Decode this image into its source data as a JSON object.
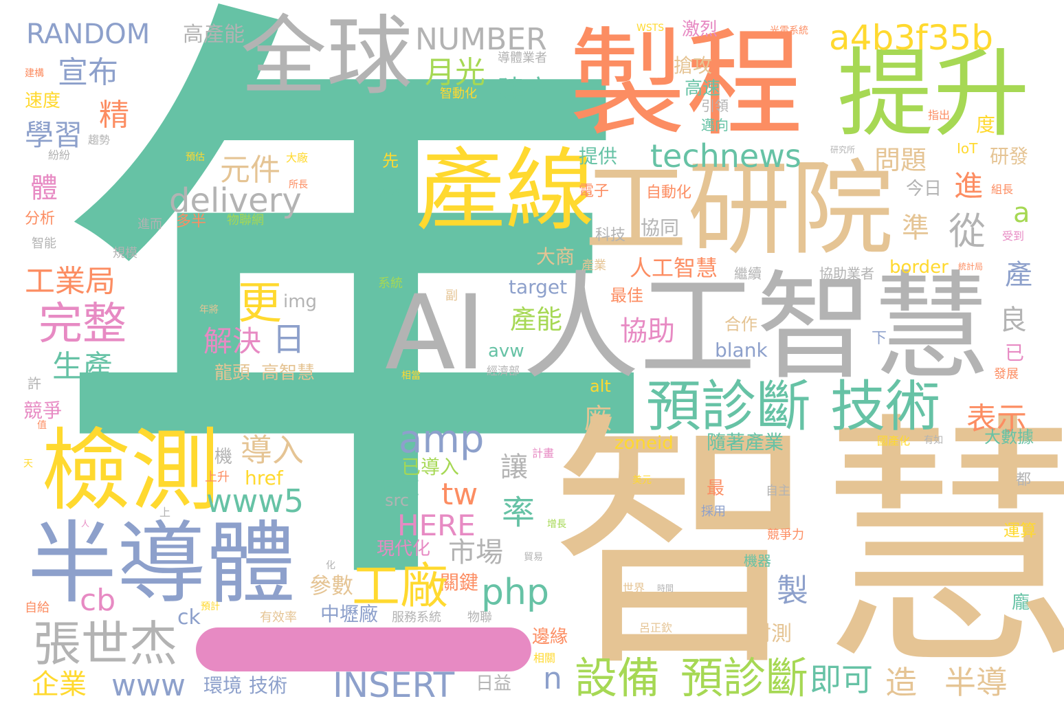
{
  "palette": {
    "teal": "#66c2a5",
    "orange": "#fc8d62",
    "blue": "#8da0cb",
    "pink": "#e78ac3",
    "green": "#a6d854",
    "yellow": "#ffd92f",
    "tan": "#e5c494",
    "gray": "#b3b3b3"
  },
  "words": {
    "nian": "年",
    "zhihui": "智慧",
    "ai": "AI",
    "rengongzhihui": "人工智慧",
    "zhicheng": "製程",
    "tisheng": "提升",
    "quanqiu": "全球",
    "chanxian": "產線",
    "gongyanyuan": "工研院",
    "jiance": "檢測",
    "bandaoti": "半導體",
    "yuzhenduan": "預診斷",
    "jishu": "技術",
    "a4b3f35b": "a4b3f35b",
    "number": "NUMBER",
    "random": "RANDOM",
    "gaochanneng": "高產能",
    "xuanbu": "宣布",
    "jing": "精",
    "xuexi": "學習",
    "yueguang": "月光",
    "jianli": "建立",
    "technews": "technews",
    "delivery": "delivery",
    "yuanjian": "元件",
    "ti": "體",
    "amp": "amp",
    "gongyeju": "工業局",
    "wanzheng": "完整",
    "shengchan": "生產",
    "geng": "更",
    "jiejue": "解決",
    "ri": "日",
    "img": "img",
    "changneng": "產能",
    "xiezhu": "協助",
    "wentiti": "問題",
    "jin": "進",
    "cong": "從",
    "a": "a",
    "zhun": "準",
    "chan": "產",
    "liang": "良",
    "biaoshi": "表示",
    "chang": "廠",
    "dashuju": "大數據",
    "daoru": "導入",
    "rang": "讓",
    "gongchang": "工廠",
    "php": "php",
    "lv": "率",
    "tw": "tw",
    "www5": "www5",
    "cb": "cb",
    "zhangshijie": "張世杰",
    "qiye": "企業",
    "www": "www",
    "insert": "INSERT",
    "n": "n",
    "shebei": "設備",
    "yuzhenduan2": "預診斷",
    "jike": "即可",
    "zao": "造",
    "bandao": "半導",
    "zhi": "製",
    "shichang": "市場",
    "here": "HERE",
    "xiandaihua": "現代化",
    "canshu": "參數",
    "zhongli": "中壢廠",
    "guanjian": "關鍵",
    "fengce": "封測",
    "bianyuan": "邊緣",
    "longtou": "龍頭",
    "gaozhihui": "高智慧",
    "hezuo": "合作",
    "blank": "blank",
    "avw": "avw",
    "alt": "alt",
    "zoneid": "zoneid",
    "suizhe": "隨著產業",
    "zuijia": "最佳",
    "target": "target",
    "border": "border",
    "rengongzhihui_s": "人工智慧",
    "dashang": "大商",
    "kexie": "協同",
    "keji": "科技",
    "zidonghua": "自動化",
    "dianzi": "電子",
    "tigong": "提供",
    "jinri": "今日",
    "yanfa": "研發",
    "iot": "IoT",
    "du": "度",
    "gaosu": "高速",
    "qianggong": "搶攻",
    "jilie": "激烈",
    "wsts": "WSTS",
    "zhihuihua": "智動化",
    "daotiyezhe": "導體業者",
    "guangdian": "光電系統",
    "yindao": "引領",
    "maixiang": "邁向",
    "xian": "先",
    "suduo": "速度",
    "fenxi": "分析",
    "jingzheng": "競爭",
    "xu": "許",
    "zige": "自給",
    "ck": "ck",
    "href": "href",
    "shangsheng": "上升",
    "yidaoru": "已導入",
    "xunsu": "迅速",
    "src": "src",
    "jiqi": "機",
    "youxiaolv": "有效率",
    "fuwu": "服務系統",
    "wulian": "物聯",
    "huanjing": "環境",
    "jishu2": "技術",
    "riyi": "日益",
    "zui": "最",
    "caiyong": "採用",
    "zizhu": "自主",
    "jiqi2": "機器",
    "shijie": "世界",
    "lvzhengqin": "呂正欽",
    "jingzhengli": "競爭力",
    "yunsuan": "運算",
    "pang": "龐",
    "dou": "都",
    "guochanhua": "國產化",
    "fazhan": "發展",
    "yi": "已",
    "xia": "下",
    "xiezhuyezhe": "協助業者",
    "jixu": "繼續",
    "tongjiju": "統計局",
    "shoudao": "受到",
    "zuzhang": "組長",
    "jiangou": "建構",
    "qushi": "趨勢",
    "fenfen": "紛紛",
    "zhineng": "智能",
    "guimo": "規模",
    "duoban": "多半",
    "wulianwang": "物聯網",
    "jiner": "進而",
    "dachang": "大廠",
    "suozhang": "所長",
    "yugu": "預估",
    "wangci": "網次",
    "meiyuan": "美元",
    "zengzhang": "增長",
    "jihua": "計畫",
    "yudong": "年將",
    "chanye": "產業",
    "jingjibu": "經濟部",
    "xiangdang": "相當",
    "zhichi": "指出",
    "yanjiusuo": "研究所",
    "gaoshu": "系統",
    "fu": "副",
    "yuji": "預計",
    "shang": "上",
    "ren": "人",
    "hua": "化",
    "tian": "天",
    "zhi2": "值",
    "shizhi": "時間",
    "ruguo": "有如",
    "xiangguan": "相關",
    "maoyi": "貿易"
  }
}
